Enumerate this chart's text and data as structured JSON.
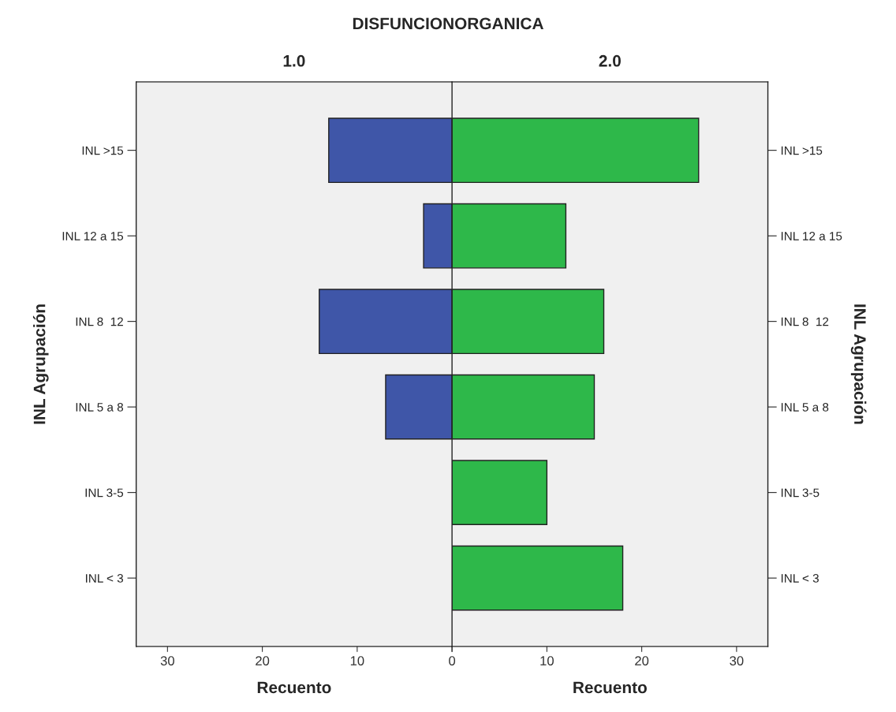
{
  "chart_data": [
    {
      "type": "bar",
      "orientation": "horizontal",
      "title": "DISFUNCIONORGANICA",
      "subtitle": "1.0",
      "xlabel": "Recuento",
      "ylabel": "INL Agrupación",
      "categories": [
        "INL >15",
        "INL 12 a 15",
        "INL 8  12",
        "INL 5 a 8",
        "INL 3-5",
        "INL < 3"
      ],
      "values": [
        13,
        3,
        14,
        7,
        null,
        null
      ],
      "color": "#3f56a8",
      "xlim": [
        33.3,
        0
      ],
      "xticks": [
        30,
        20,
        10,
        {
          "value": 0,
          "label": null
        }
      ],
      "grid": false,
      "legend": false
    },
    {
      "type": "bar",
      "orientation": "horizontal",
      "subtitle": "2.0",
      "xlabel": "Recuento",
      "ylabel": "INL Agrupación",
      "categories": [
        "INL >15",
        "INL 12 a 15",
        "INL 8  12",
        "INL 5 a 8",
        "INL 3-5",
        "INL < 3"
      ],
      "values": [
        26,
        12,
        16,
        15,
        10,
        18
      ],
      "color": "#2eb84a",
      "xlim": [
        0,
        33.3
      ],
      "xticks": [
        0,
        10,
        20,
        30
      ],
      "grid": false,
      "legend": false
    }
  ]
}
